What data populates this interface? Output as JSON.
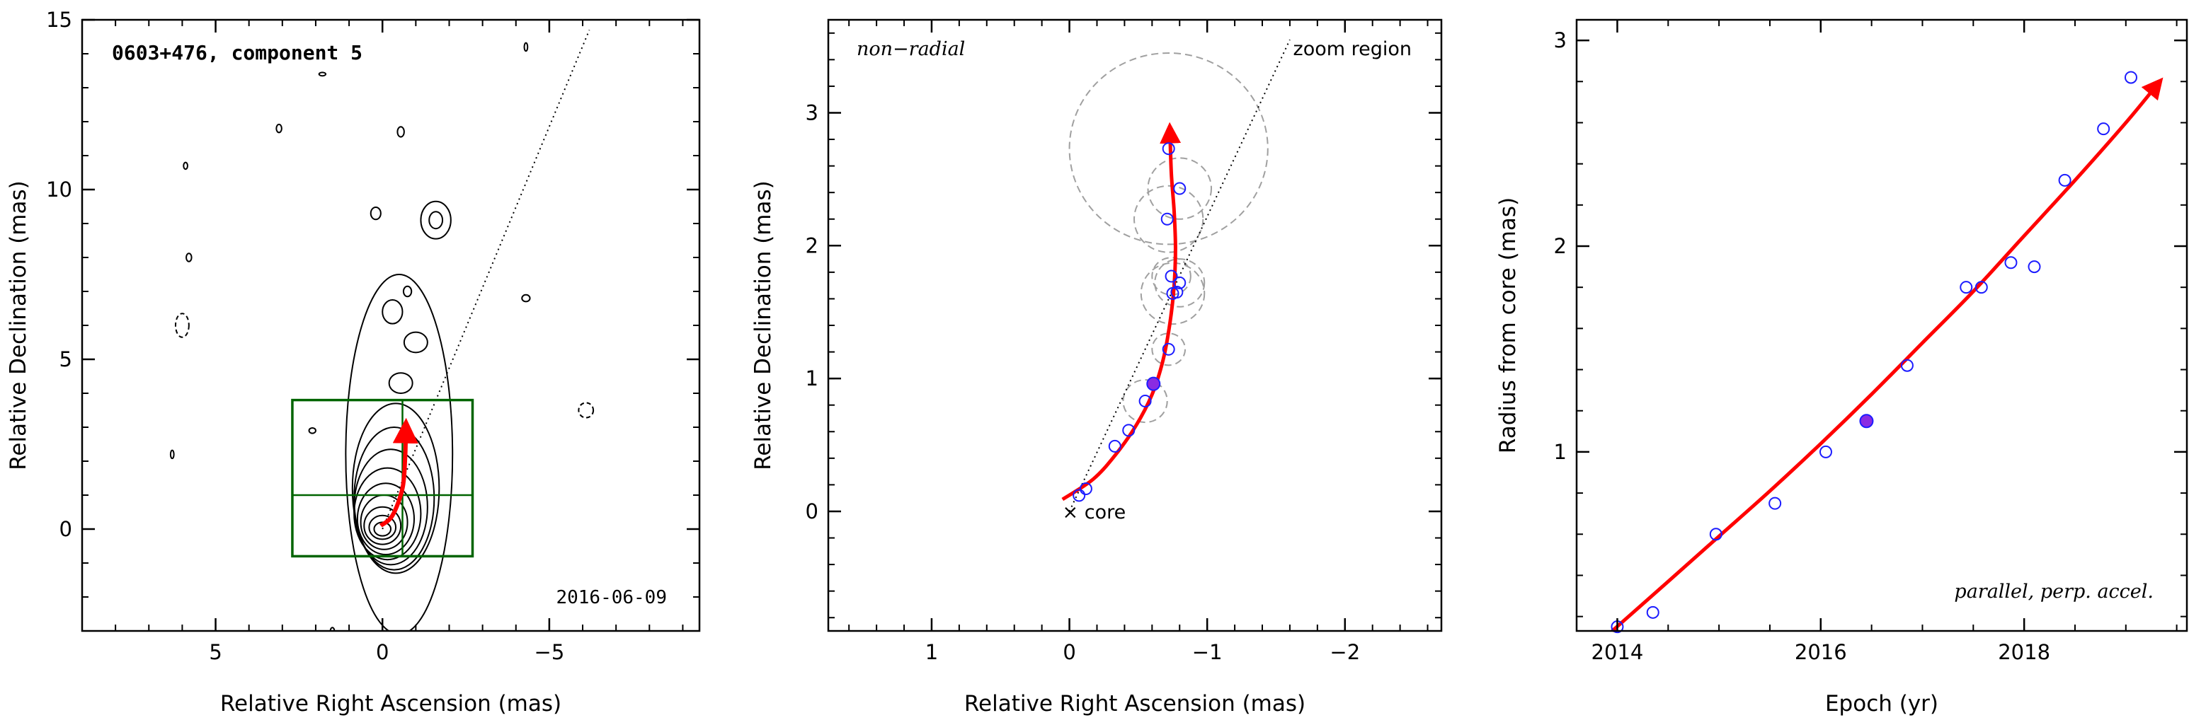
{
  "chart_data": [
    {
      "type": "contour",
      "title": "0603+476, component 5",
      "xlabel": "Relative Right Ascension (mas)",
      "ylabel": "Relative Declination (mas)",
      "xlim": [
        9,
        -9.5
      ],
      "ylim": [
        -3,
        15
      ],
      "xticks": [
        5,
        0,
        -5
      ],
      "xtick_labels": [
        "5",
        "0",
        "−5"
      ],
      "yticks": [
        0,
        5,
        10,
        15
      ],
      "ytick_labels": [
        "0",
        "5",
        "10",
        "15"
      ],
      "date": "2016-06-09",
      "jet_axis_line": [
        [
          0,
          0
        ],
        [
          -6.2,
          14.7
        ]
      ],
      "zoom_box": {
        "x": [
          2.7,
          -2.7
        ],
        "y": [
          -0.8,
          3.8
        ],
        "divider_x": -0.6,
        "divider_y": 1.0
      },
      "trajectory": {
        "x": [
          0.05,
          -0.3,
          -0.6,
          -0.68,
          -0.7
        ],
        "y": [
          0.1,
          0.4,
          1.2,
          2.1,
          2.9
        ]
      },
      "contours": [
        {
          "cx": 0,
          "cy": 0,
          "rx": 0.25,
          "ry": 0.2
        },
        {
          "cx": 0,
          "cy": 0.05,
          "rx": 0.4,
          "ry": 0.35
        },
        {
          "cx": 0,
          "cy": 0.1,
          "rx": 0.55,
          "ry": 0.55
        },
        {
          "cx": -0.05,
          "cy": 0.2,
          "rx": 0.7,
          "ry": 0.8
        },
        {
          "cx": -0.1,
          "cy": 0.3,
          "rx": 0.85,
          "ry": 1.05
        },
        {
          "cx": -0.15,
          "cy": 0.45,
          "rx": 1.0,
          "ry": 1.35
        },
        {
          "cx": -0.25,
          "cy": 0.65,
          "rx": 1.1,
          "ry": 1.7
        },
        {
          "cx": -0.35,
          "cy": 0.9,
          "rx": 1.2,
          "ry": 2.1
        },
        {
          "cx": -0.4,
          "cy": 1.2,
          "rx": 1.3,
          "ry": 2.5
        },
        {
          "cx": -0.5,
          "cy": 2.2,
          "rx": 1.6,
          "ry": 5.3
        },
        {
          "cx": -0.55,
          "cy": 4.3,
          "rx": 0.35,
          "ry": 0.3
        },
        {
          "cx": -1.0,
          "cy": 5.5,
          "rx": 0.35,
          "ry": 0.3
        },
        {
          "cx": -0.3,
          "cy": 6.4,
          "rx": 0.3,
          "ry": 0.35
        },
        {
          "cx": -1.6,
          "cy": 9.1,
          "rx": 0.45,
          "ry": 0.55
        },
        {
          "cx": -1.6,
          "cy": 9.1,
          "rx": 0.2,
          "ry": 0.25
        },
        {
          "cx": 0.2,
          "cy": 9.3,
          "rx": 0.15,
          "ry": 0.18
        },
        {
          "cx": -0.55,
          "cy": 11.7,
          "rx": 0.1,
          "ry": 0.15
        },
        {
          "cx": -0.75,
          "cy": 7.0,
          "rx": 0.12,
          "ry": 0.15
        },
        {
          "cx": -4.3,
          "cy": 6.8,
          "rx": 0.12,
          "ry": 0.1
        },
        {
          "cx": 5.8,
          "cy": 8.0,
          "rx": 0.08,
          "ry": 0.12
        },
        {
          "cx": 5.9,
          "cy": 10.7,
          "rx": 0.06,
          "ry": 0.1
        },
        {
          "cx": 3.1,
          "cy": 11.8,
          "rx": 0.08,
          "ry": 0.12
        },
        {
          "cx": 1.8,
          "cy": 13.4,
          "rx": 0.1,
          "ry": 0.05
        },
        {
          "cx": -4.3,
          "cy": 14.2,
          "rx": 0.05,
          "ry": 0.12
        },
        {
          "cx": 6.3,
          "cy": 2.2,
          "rx": 0.05,
          "ry": 0.12
        },
        {
          "cx": 2.1,
          "cy": 2.9,
          "rx": 0.1,
          "ry": 0.08
        },
        {
          "cx": 1.5,
          "cy": -3.0,
          "rx": 0.06,
          "ry": 0.1
        }
      ],
      "negative_contours": [
        {
          "cx": 6.0,
          "cy": 6.0,
          "rx": 0.2,
          "ry": 0.35
        },
        {
          "cx": -6.1,
          "cy": 3.5,
          "rx": 0.22,
          "ry": 0.22
        }
      ]
    },
    {
      "type": "scatter",
      "xlabel": "Relative Right Ascension (mas)",
      "ylabel": "Relative Declination (mas)",
      "xlim": [
        1.75,
        -2.7
      ],
      "ylim": [
        -0.9,
        3.7
      ],
      "xticks": [
        1,
        0,
        -1,
        -2
      ],
      "xtick_labels": [
        "1",
        "0",
        "−1",
        "−2"
      ],
      "yticks": [
        0,
        1,
        2,
        3
      ],
      "ytick_labels": [
        "0",
        "1",
        "2",
        "3"
      ],
      "annotations": [
        "non−radial",
        "zoom region",
        "× core"
      ],
      "core": [
        0,
        0
      ],
      "zoom_line": [
        [
          0,
          0
        ],
        [
          -1.6,
          3.55
        ]
      ],
      "points": {
        "x": [
          -0.07,
          -0.12,
          -0.33,
          -0.43,
          -0.55,
          -0.72,
          -0.75,
          -0.78,
          -0.8,
          -0.74,
          -0.71,
          -0.8,
          -0.72
        ],
        "y": [
          0.12,
          0.17,
          0.49,
          0.61,
          0.83,
          1.22,
          1.64,
          1.65,
          1.72,
          1.77,
          2.2,
          2.43,
          2.73
        ]
      },
      "highlight": {
        "x": -0.61,
        "y": 0.96
      },
      "error_circles": [
        {
          "x": -0.55,
          "y": 0.83,
          "r": 0.16
        },
        {
          "x": -0.72,
          "y": 1.22,
          "r": 0.12
        },
        {
          "x": -0.75,
          "y": 1.64,
          "r": 0.23
        },
        {
          "x": -0.8,
          "y": 1.72,
          "r": 0.18
        },
        {
          "x": -0.74,
          "y": 1.77,
          "r": 0.14
        },
        {
          "x": -0.72,
          "y": 2.2,
          "r": 0.25
        },
        {
          "x": -0.8,
          "y": 2.43,
          "r": 0.23
        },
        {
          "x": -0.72,
          "y": 2.73,
          "r": 0.72
        }
      ],
      "trajectory": {
        "x": [
          0.05,
          -0.17,
          -0.33,
          -0.48,
          -0.6,
          -0.68,
          -0.73,
          -0.76,
          -0.77,
          -0.76,
          -0.74,
          -0.73
        ],
        "y": [
          0.09,
          0.24,
          0.42,
          0.64,
          0.88,
          1.14,
          1.42,
          1.7,
          1.98,
          2.26,
          2.54,
          2.85
        ]
      }
    },
    {
      "type": "scatter",
      "xlabel": "Epoch (yr)",
      "ylabel": "Radius from core (mas)",
      "xlim": [
        2013.6,
        2019.6
      ],
      "ylim": [
        0.13,
        3.1
      ],
      "xticks": [
        2014,
        2016,
        2018
      ],
      "xtick_labels": [
        "2014",
        "2016",
        "2018"
      ],
      "yticks": [
        1,
        2,
        3
      ],
      "ytick_labels": [
        "1",
        "2",
        "3"
      ],
      "annotations": [
        "parallel, perp. accel."
      ],
      "points": {
        "x": [
          2014.0,
          2014.35,
          2014.97,
          2015.55,
          2016.05,
          2016.85,
          2017.43,
          2017.58,
          2017.87,
          2018.1,
          2018.4,
          2018.78,
          2019.05
        ],
        "y": [
          0.15,
          0.22,
          0.6,
          0.75,
          1.0,
          1.42,
          1.8,
          1.8,
          1.92,
          1.9,
          2.32,
          2.57,
          2.82
        ]
      },
      "highlight": {
        "x": 2016.45,
        "y": 1.15
      },
      "fit_curve": {
        "x": [
          2013.95,
          2014.5,
          2015.0,
          2015.5,
          2016.0,
          2016.5,
          2017.0,
          2017.5,
          2018.0,
          2018.5,
          2019.0,
          2019.3
        ],
        "y": [
          0.13,
          0.37,
          0.59,
          0.81,
          1.04,
          1.28,
          1.53,
          1.78,
          2.05,
          2.32,
          2.6,
          2.78
        ]
      }
    }
  ]
}
